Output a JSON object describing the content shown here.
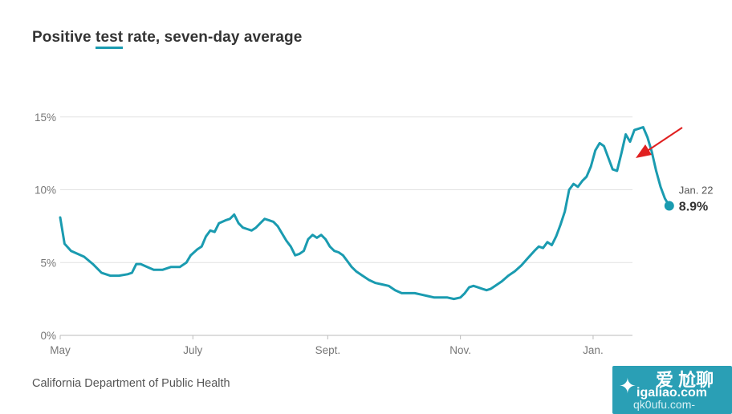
{
  "chart_data": {
    "type": "line",
    "title_prefix": "Positive ",
    "title_highlight": "test",
    "title_suffix": " rate, seven-day average",
    "source": "California Department of Public Health",
    "y_ticks": [
      {
        "value": 0,
        "label": "0%"
      },
      {
        "value": 5,
        "label": "5%"
      },
      {
        "value": 10,
        "label": "10%"
      },
      {
        "value": 15,
        "label": "15%"
      }
    ],
    "x_ticks": [
      {
        "value": 0,
        "label": "May"
      },
      {
        "value": 61,
        "label": "July"
      },
      {
        "value": 123,
        "label": "Sept."
      },
      {
        "value": 184,
        "label": "Nov."
      },
      {
        "value": 245,
        "label": "Jan."
      }
    ],
    "ylim": [
      0,
      15
    ],
    "grid": true,
    "series_color": "#1a9bb0",
    "end_label_date": "Jan. 22",
    "end_label_value": "8.9%",
    "series": [
      {
        "points": [
          [
            0,
            8.1
          ],
          [
            2,
            6.3
          ],
          [
            5,
            5.8
          ],
          [
            8,
            5.6
          ],
          [
            11,
            5.4
          ],
          [
            15,
            4.9
          ],
          [
            19,
            4.3
          ],
          [
            23,
            4.1
          ],
          [
            27,
            4.1
          ],
          [
            31,
            4.2
          ],
          [
            33,
            4.3
          ],
          [
            35,
            4.9
          ],
          [
            37,
            4.9
          ],
          [
            40,
            4.7
          ],
          [
            43,
            4.5
          ],
          [
            47,
            4.5
          ],
          [
            51,
            4.7
          ],
          [
            55,
            4.7
          ],
          [
            58,
            5.0
          ],
          [
            60,
            5.5
          ],
          [
            63,
            5.9
          ],
          [
            65,
            6.1
          ],
          [
            67,
            6.8
          ],
          [
            69,
            7.2
          ],
          [
            71,
            7.1
          ],
          [
            73,
            7.7
          ],
          [
            76,
            7.9
          ],
          [
            78,
            8.0
          ],
          [
            80,
            8.3
          ],
          [
            82,
            7.7
          ],
          [
            84,
            7.4
          ],
          [
            86,
            7.3
          ],
          [
            88,
            7.2
          ],
          [
            90,
            7.4
          ],
          [
            92,
            7.7
          ],
          [
            94,
            8.0
          ],
          [
            96,
            7.9
          ],
          [
            98,
            7.8
          ],
          [
            100,
            7.5
          ],
          [
            102,
            7.0
          ],
          [
            104,
            6.5
          ],
          [
            106,
            6.1
          ],
          [
            108,
            5.5
          ],
          [
            110,
            5.6
          ],
          [
            112,
            5.8
          ],
          [
            114,
            6.6
          ],
          [
            116,
            6.9
          ],
          [
            118,
            6.7
          ],
          [
            120,
            6.9
          ],
          [
            122,
            6.6
          ],
          [
            124,
            6.1
          ],
          [
            126,
            5.8
          ],
          [
            128,
            5.7
          ],
          [
            130,
            5.5
          ],
          [
            132,
            5.1
          ],
          [
            134,
            4.7
          ],
          [
            136,
            4.4
          ],
          [
            139,
            4.1
          ],
          [
            142,
            3.8
          ],
          [
            145,
            3.6
          ],
          [
            148,
            3.5
          ],
          [
            151,
            3.4
          ],
          [
            154,
            3.1
          ],
          [
            157,
            2.9
          ],
          [
            160,
            2.9
          ],
          [
            163,
            2.9
          ],
          [
            166,
            2.8
          ],
          [
            169,
            2.7
          ],
          [
            172,
            2.6
          ],
          [
            175,
            2.6
          ],
          [
            178,
            2.6
          ],
          [
            181,
            2.5
          ],
          [
            184,
            2.6
          ],
          [
            186,
            2.9
          ],
          [
            188,
            3.3
          ],
          [
            190,
            3.4
          ],
          [
            192,
            3.3
          ],
          [
            194,
            3.2
          ],
          [
            196,
            3.1
          ],
          [
            198,
            3.2
          ],
          [
            200,
            3.4
          ],
          [
            203,
            3.7
          ],
          [
            206,
            4.1
          ],
          [
            209,
            4.4
          ],
          [
            212,
            4.8
          ],
          [
            215,
            5.3
          ],
          [
            218,
            5.8
          ],
          [
            220,
            6.1
          ],
          [
            222,
            6.0
          ],
          [
            224,
            6.4
          ],
          [
            226,
            6.2
          ],
          [
            228,
            6.8
          ],
          [
            230,
            7.6
          ],
          [
            232,
            8.5
          ],
          [
            234,
            10.0
          ],
          [
            236,
            10.4
          ],
          [
            238,
            10.2
          ],
          [
            240,
            10.6
          ],
          [
            242,
            10.9
          ],
          [
            244,
            11.6
          ],
          [
            246,
            12.7
          ],
          [
            248,
            13.2
          ],
          [
            250,
            13.0
          ],
          [
            252,
            12.2
          ],
          [
            254,
            11.4
          ],
          [
            256,
            11.3
          ],
          [
            258,
            12.5
          ],
          [
            260,
            13.8
          ],
          [
            262,
            13.3
          ],
          [
            264,
            14.1
          ],
          [
            266,
            14.2
          ],
          [
            268,
            14.3
          ],
          [
            270,
            13.6
          ],
          [
            272,
            12.6
          ],
          [
            274,
            11.3
          ],
          [
            276,
            10.2
          ],
          [
            278,
            9.4
          ],
          [
            280,
            8.9
          ]
        ]
      }
    ]
  },
  "watermark": {
    "line1": "爱 尬聊",
    "line2": "igaliao.com",
    "line3": "qk0ufu.com-"
  }
}
